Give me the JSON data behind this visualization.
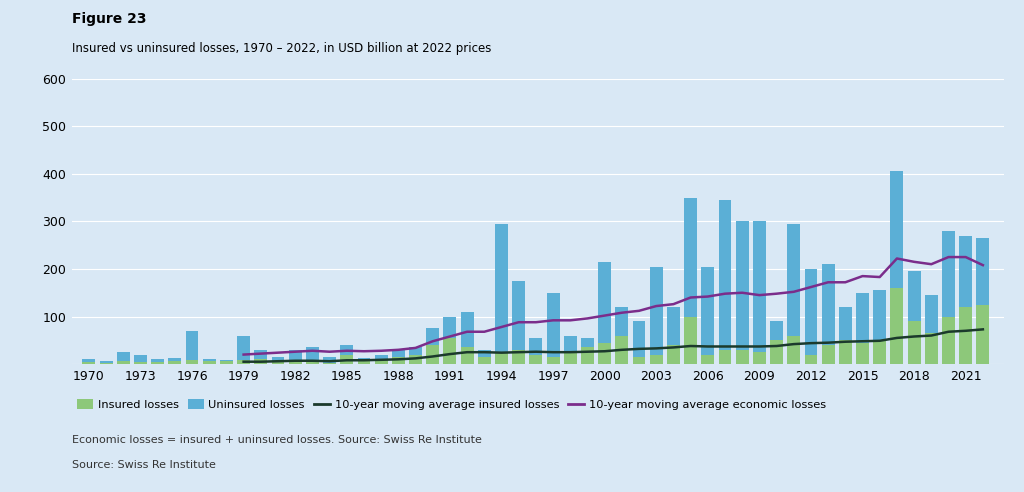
{
  "title": "Figure 23",
  "subtitle": "Insured vs uninsured losses, 1970 – 2022, in USD billion at 2022 prices",
  "footnote1": "Economic losses = insured + uninsured losses. Source: Swiss Re Institute",
  "footnote2": "Source: Swiss Re Institute",
  "years": [
    1970,
    1971,
    1972,
    1973,
    1974,
    1975,
    1976,
    1977,
    1978,
    1979,
    1980,
    1981,
    1982,
    1983,
    1984,
    1985,
    1986,
    1987,
    1988,
    1989,
    1990,
    1991,
    1992,
    1993,
    1994,
    1995,
    1996,
    1997,
    1998,
    1999,
    2000,
    2001,
    2002,
    2003,
    2004,
    2005,
    2006,
    2007,
    2008,
    2009,
    2010,
    2011,
    2012,
    2013,
    2014,
    2015,
    2016,
    2017,
    2018,
    2019,
    2020,
    2021,
    2022
  ],
  "insured_losses": [
    5,
    3,
    6,
    5,
    4,
    6,
    8,
    6,
    6,
    8,
    10,
    4,
    6,
    5,
    3,
    20,
    7,
    8,
    15,
    20,
    40,
    55,
    35,
    15,
    25,
    30,
    20,
    15,
    25,
    35,
    45,
    60,
    15,
    20,
    40,
    100,
    20,
    30,
    30,
    25,
    50,
    60,
    20,
    40,
    50,
    45,
    50,
    160,
    90,
    65,
    100,
    120,
    125
  ],
  "uninsured_losses": [
    10,
    6,
    25,
    20,
    10,
    12,
    70,
    10,
    8,
    60,
    30,
    15,
    30,
    35,
    15,
    40,
    12,
    20,
    30,
    35,
    75,
    100,
    110,
    30,
    295,
    175,
    55,
    150,
    60,
    55,
    215,
    120,
    90,
    205,
    120,
    350,
    205,
    345,
    300,
    300,
    90,
    295,
    200,
    210,
    120,
    150,
    155,
    405,
    195,
    145,
    280,
    270,
    265
  ],
  "ma_insured": [
    null,
    null,
    null,
    null,
    null,
    null,
    null,
    null,
    null,
    5,
    5,
    6,
    7,
    7,
    6,
    8,
    8,
    9,
    10,
    12,
    16,
    21,
    25,
    25,
    24,
    25,
    26,
    25,
    25,
    26,
    27,
    30,
    32,
    33,
    35,
    38,
    37,
    37,
    37,
    37,
    38,
    42,
    44,
    45,
    47,
    48,
    49,
    55,
    58,
    60,
    68,
    70,
    73
  ],
  "ma_economic": [
    null,
    null,
    null,
    null,
    null,
    null,
    null,
    null,
    null,
    20,
    22,
    24,
    26,
    28,
    26,
    28,
    27,
    28,
    30,
    34,
    48,
    58,
    68,
    68,
    78,
    88,
    88,
    92,
    92,
    96,
    102,
    108,
    112,
    122,
    126,
    140,
    142,
    148,
    150,
    145,
    148,
    152,
    162,
    172,
    172,
    185,
    183,
    222,
    215,
    210,
    225,
    225,
    208
  ],
  "insured_color": "#8dc87a",
  "uninsured_color": "#5bafd6",
  "ma_insured_color": "#1b3a2c",
  "ma_economic_color": "#7b2d8b",
  "background_color": "#d9e8f5",
  "plot_bg_color": "#d9e8f5",
  "grid_color": "#ffffff",
  "ylim": [
    0,
    600
  ],
  "yticks": [
    100,
    200,
    300,
    400,
    500,
    600
  ],
  "xtick_labels": [
    "1970",
    "1973",
    "1976",
    "1979",
    "1982",
    "1985",
    "1988",
    "1991",
    "1994",
    "1997",
    "2000",
    "2003",
    "2006",
    "2009",
    "2012",
    "2015",
    "2018",
    "2021"
  ],
  "xtick_years": [
    1970,
    1973,
    1976,
    1979,
    1982,
    1985,
    1988,
    1991,
    1994,
    1997,
    2000,
    2003,
    2006,
    2009,
    2012,
    2015,
    2018,
    2021
  ]
}
